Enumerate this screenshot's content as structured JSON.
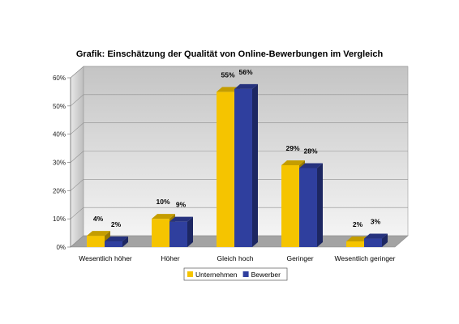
{
  "chart_data": {
    "type": "bar",
    "title": "Grafik: Einschätzung der Qualität von Online-Bewerbungen im Vergleich",
    "categories": [
      "Wesentlich höher",
      "Höher",
      "Gleich hoch",
      "Geringer",
      "Wesentlich geringer"
    ],
    "series": [
      {
        "name": "Unternehmen",
        "values": [
          4,
          10,
          55,
          29,
          2
        ],
        "color": "#f5c400"
      },
      {
        "name": "Bewerber",
        "values": [
          2,
          9,
          56,
          28,
          3
        ],
        "color": "#2f3f9e"
      }
    ],
    "value_suffix": "%",
    "ylim": [
      0,
      60
    ],
    "yticks": [
      "0%",
      "10%",
      "20%",
      "30%",
      "40%",
      "50%",
      "60%"
    ],
    "grid": true,
    "legend_position": "bottom"
  }
}
